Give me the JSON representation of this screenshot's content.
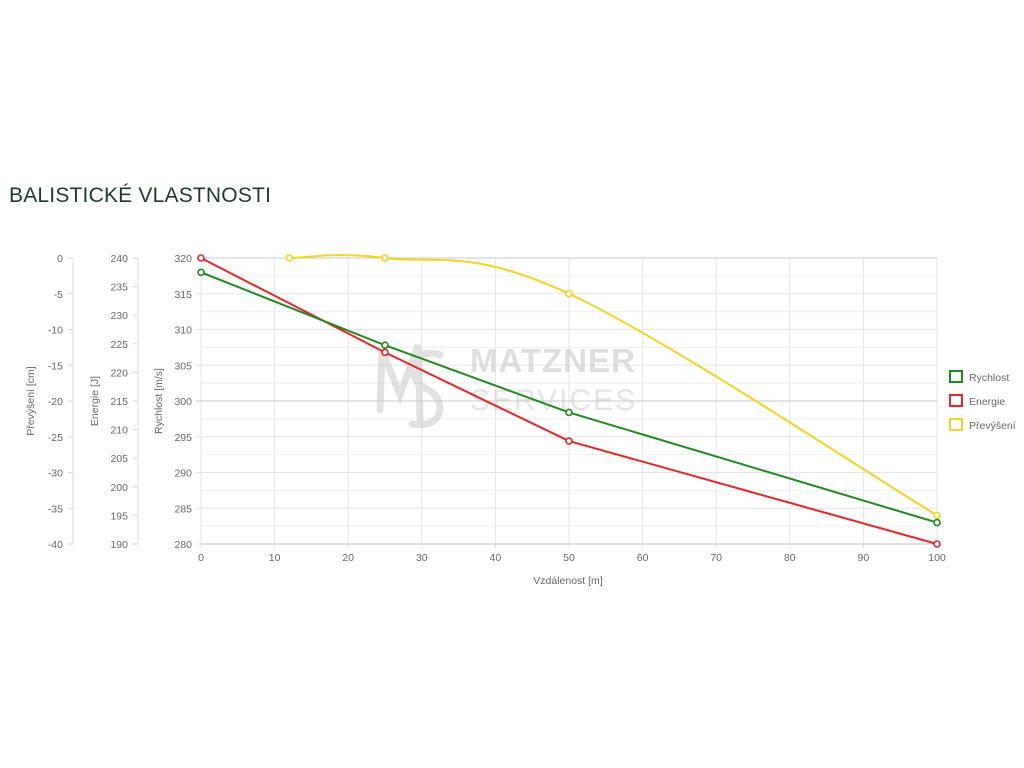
{
  "page_title": "BALISTICKÉ VLASTNOSTI",
  "watermark": {
    "line1": "MATZNER",
    "line2": "SERVICES"
  },
  "chart_data": {
    "type": "line",
    "title": "",
    "xlabel": "Vzdálenost [m]",
    "xlim": [
      0,
      100
    ],
    "x_ticks": [
      "0",
      "10",
      "20",
      "30",
      "40",
      "50",
      "60",
      "70",
      "80",
      "90",
      "100"
    ],
    "grid": true,
    "legend_position": "right",
    "y_axes": [
      {
        "id": "speed",
        "label": "Rychlost [m/s]",
        "range": [
          280,
          320
        ],
        "ticks": [
          "320",
          "315",
          "310",
          "305",
          "300",
          "295",
          "290",
          "285",
          "280"
        ]
      },
      {
        "id": "energy",
        "label": "Energie [J]",
        "range": [
          190,
          240
        ],
        "ticks": [
          "240",
          "235",
          "230",
          "225",
          "220",
          "215",
          "210",
          "205",
          "200",
          "195",
          "190"
        ]
      },
      {
        "id": "drop",
        "label": "Převýšení [cm]",
        "range": [
          -40,
          0
        ],
        "ticks": [
          "0",
          "-5",
          "-10",
          "-15",
          "-20",
          "-25",
          "-30",
          "-35",
          "-40"
        ]
      }
    ],
    "series": [
      {
        "name": "Rychlost",
        "color": "#1f8a1f",
        "axis": "speed",
        "smooth": false,
        "points": [
          [
            0,
            318
          ],
          [
            25,
            307.8
          ],
          [
            50,
            298.4
          ],
          [
            100,
            283
          ]
        ]
      },
      {
        "name": "Energie",
        "color": "#e8262a",
        "axis": "energy",
        "smooth": false,
        "points": [
          [
            0,
            240
          ],
          [
            25,
            223.5
          ],
          [
            50,
            208
          ],
          [
            100,
            190
          ]
        ]
      },
      {
        "name": "Převýšení",
        "color": "#f2d51f",
        "axis": "drop",
        "smooth": true,
        "points": [
          [
            12,
            0
          ],
          [
            25,
            0
          ],
          [
            50,
            -5
          ],
          [
            100,
            -36
          ]
        ]
      }
    ]
  }
}
